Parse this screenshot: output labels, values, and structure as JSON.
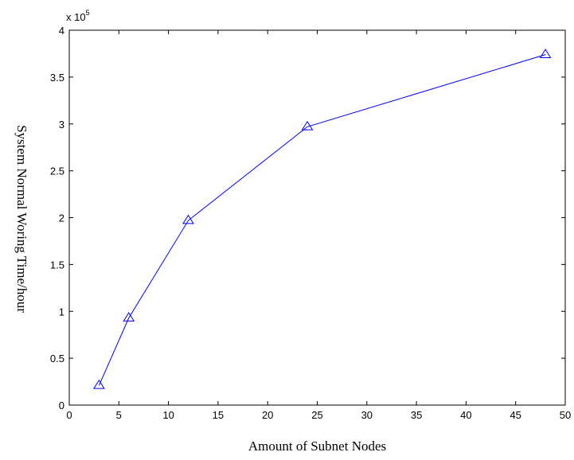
{
  "chart_data": {
    "type": "line",
    "title": "",
    "xlabel": "Amount of Subnet Nodes",
    "ylabel": "System Normal Woring Time/hour",
    "xlim": [
      0,
      50
    ],
    "ylim": [
      0,
      4
    ],
    "xticks": [
      0,
      5,
      10,
      15,
      20,
      25,
      30,
      35,
      40,
      45,
      50
    ],
    "yticks": [
      0,
      0.5,
      1,
      1.5,
      2,
      2.5,
      3,
      3.5,
      4
    ],
    "y_multiplier_prefix": "x 10",
    "y_multiplier_exponent": "5",
    "grid": false,
    "legend": "none",
    "marker": "triangle",
    "series": [
      {
        "color": "#0000ff",
        "x": [
          3,
          6,
          12,
          24,
          48
        ],
        "y": [
          0.21,
          0.93,
          1.97,
          2.97,
          3.74
        ]
      }
    ]
  }
}
